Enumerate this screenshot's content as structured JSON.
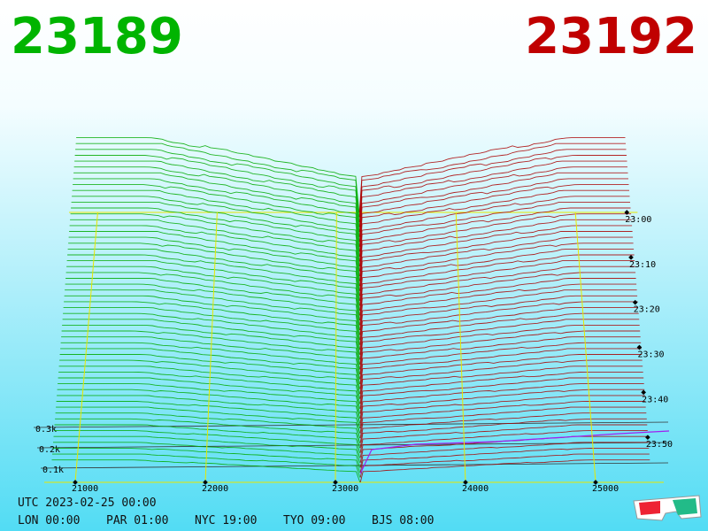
{
  "chart_data": {
    "type": "depth3d",
    "bid": "23189",
    "ask": "23192",
    "bid_color": "#00b400",
    "ask_color": "#c00000",
    "xlim": [
      21000,
      25000
    ],
    "xticks": [
      21000,
      22000,
      23000,
      24000,
      25000
    ],
    "time_ticks": [
      "23:00",
      "23:10",
      "23:20",
      "23:30",
      "23:40",
      "23:50"
    ],
    "depth_ticks": [
      {
        "value": 300,
        "label": "0.3k"
      },
      {
        "value": 200,
        "label": "0.2k"
      },
      {
        "value": 100,
        "label": "0.1k"
      }
    ],
    "timestamp": "UTC 2023-02-25 00:00",
    "clocks": [
      "LON 00:00",
      "PAR 01:00",
      "NYC 19:00",
      "TYO 09:00",
      "BJS 08:00"
    ]
  }
}
